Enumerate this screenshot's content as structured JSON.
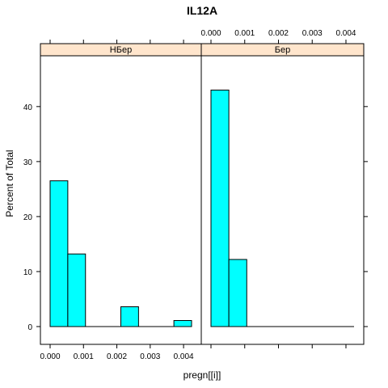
{
  "chart_data": {
    "type": "bar",
    "title": "IL12A",
    "xlabel": "pregn[[i]]",
    "ylabel": "Percent of Total",
    "xlim": [
      -0.0003,
      0.0047
    ],
    "ylim": [
      0,
      46
    ],
    "x_ticks": [
      "0.000",
      "0.001",
      "0.002",
      "0.003",
      "0.004"
    ],
    "x_tick_values": [
      0,
      0.001,
      0.002,
      0.003,
      0.004
    ],
    "y_ticks": [
      "0",
      "10",
      "20",
      "30",
      "40"
    ],
    "y_tick_values": [
      0,
      10,
      20,
      30,
      40
    ],
    "bin_edges": [
      0.0,
      0.00053,
      0.00106,
      0.00159,
      0.00212,
      0.00265,
      0.00318,
      0.00371,
      0.00424
    ],
    "bar_color": "#00ffff",
    "strip_color": "#ffe5cc",
    "panels": [
      {
        "name": "НБер",
        "values": [
          26.5,
          13.2,
          0,
          0,
          3.6,
          0,
          0,
          1.1
        ]
      },
      {
        "name": "Бер",
        "values": [
          43.0,
          12.2,
          0,
          0,
          0,
          0,
          0,
          0
        ]
      }
    ]
  }
}
